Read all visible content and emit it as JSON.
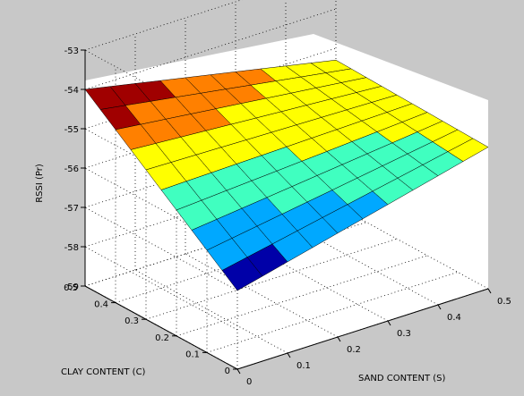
{
  "chart_data": {
    "type": "surface",
    "title": "",
    "zlabel": "RSSI (Pr)",
    "xlabel": "SAND CONTENT (S)",
    "ylabel": "CLAY CONTENT (C)",
    "zlim": [
      -59,
      -53
    ],
    "xlim": [
      0,
      0.5
    ],
    "ylim": [
      0,
      0.5
    ],
    "grid": true,
    "ticks": {
      "z": [
        "-53",
        "-54",
        "-55",
        "-56",
        "-57",
        "-58",
        "-59"
      ],
      "x": [
        "0",
        "0.1",
        "0.2",
        "0.3",
        "0.4",
        "0.5"
      ],
      "y": [
        "0",
        "0.1",
        "0.2",
        "0.3",
        "0.4",
        "0.5"
      ]
    },
    "corner_values": [
      {
        "sand": 0,
        "clay": 0.5,
        "rssi": -54.0
      },
      {
        "sand": 0.5,
        "clay": 0.5,
        "rssi": -55.3
      },
      {
        "sand": 0.5,
        "clay": 0,
        "rssi": -55.4
      },
      {
        "sand": 0,
        "clay": 0,
        "rssi": -57.0
      }
    ],
    "colormap": [
      "#0000a8",
      "#00a8ff",
      "#40ffc0",
      "#ffff00",
      "#ff8000",
      "#a00000"
    ]
  }
}
